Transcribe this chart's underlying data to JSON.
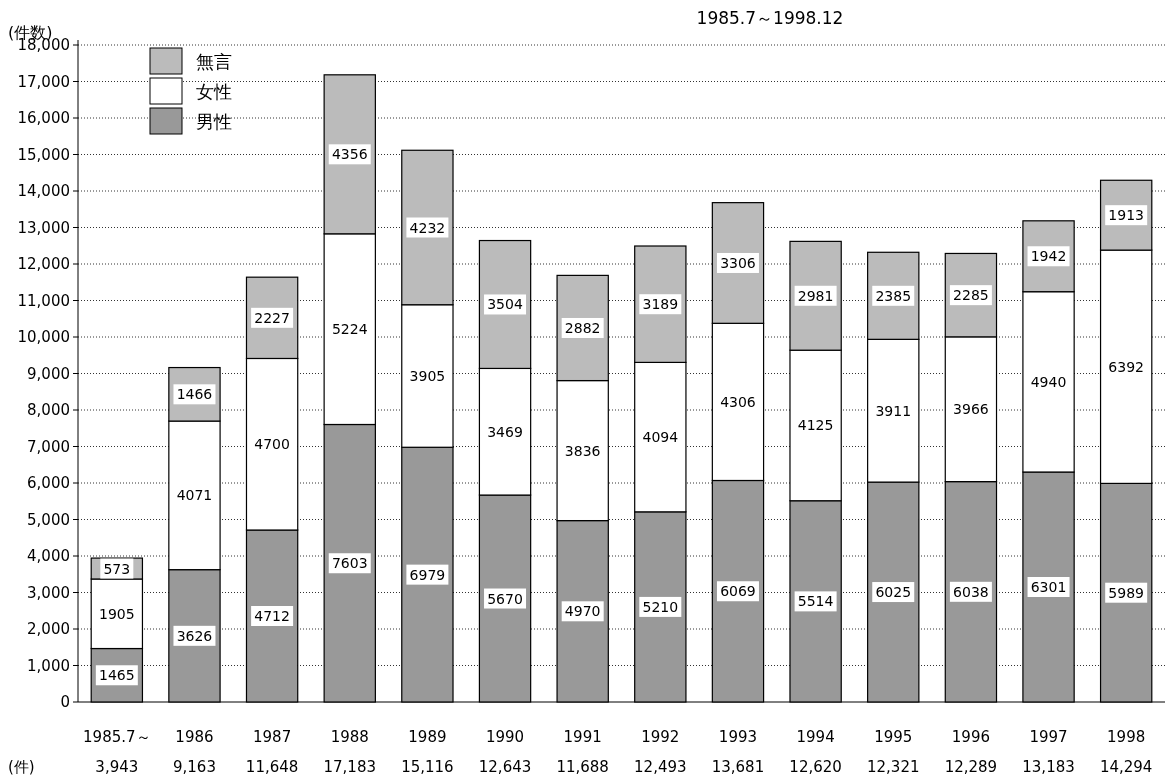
{
  "chart_data": {
    "type": "bar",
    "title": "1985.7～1998.12",
    "ylabel": "(件数)",
    "categories": [
      "1985.7～",
      "1986",
      "1987",
      "1988",
      "1989",
      "1990",
      "1991",
      "1992",
      "1993",
      "1994",
      "1995",
      "1996",
      "1997",
      "1998"
    ],
    "stacked": true,
    "series": [
      {
        "name": "男性",
        "color": "#999999",
        "values": [
          1465,
          3626,
          4712,
          7603,
          6979,
          5670,
          4970,
          5210,
          6069,
          5514,
          6025,
          6038,
          6301,
          5989
        ]
      },
      {
        "name": "女性",
        "color": "#ffffff",
        "values": [
          1905,
          4071,
          4700,
          5224,
          3905,
          3469,
          3836,
          4094,
          4306,
          4125,
          3911,
          3966,
          4940,
          6392
        ]
      },
      {
        "name": "無言",
        "color": "#bbbbbb",
        "values": [
          573,
          1466,
          2227,
          4356,
          4232,
          3504,
          2882,
          3189,
          3306,
          2981,
          2385,
          2285,
          1942,
          1913
        ]
      }
    ],
    "annotations": [
      "(件)",
      "3,943",
      "9,163",
      "11,648",
      "17,183",
      "15,116",
      "12,643",
      "11,688",
      "12,493",
      "13,681",
      "12,620",
      "12,321",
      "12,289",
      "13,183",
      "14,294"
    ],
    "ylim": [
      0,
      18000
    ],
    "yticks": [
      0,
      {
        "value": 1000,
        "label": "1,000"
      },
      {
        "value": 2000,
        "label": "2,000"
      },
      {
        "value": 3000,
        "label": "3,000"
      },
      {
        "value": 4000,
        "label": "4,000"
      },
      {
        "value": 5000,
        "label": "5,000"
      },
      {
        "value": 6000,
        "label": "6,000"
      },
      {
        "value": 7000,
        "label": "7,000"
      },
      {
        "value": 8000,
        "label": "8,000"
      },
      {
        "value": 9000,
        "label": "9,000"
      },
      {
        "value": 10000,
        "label": "10,000"
      },
      {
        "value": 11000,
        "label": "11,000"
      },
      {
        "value": 12000,
        "label": "12,000"
      },
      {
        "value": 13000,
        "label": "13,000"
      },
      {
        "value": 14000,
        "label": "14,000"
      },
      {
        "value": 15000,
        "label": "15,000"
      },
      {
        "value": 16000,
        "label": "16,000"
      },
      {
        "value": 17000,
        "label": "17,000"
      },
      {
        "value": 18000,
        "label": "18,000"
      }
    ],
    "grid": "y",
    "legend": "top left",
    "data_labels": true
  }
}
